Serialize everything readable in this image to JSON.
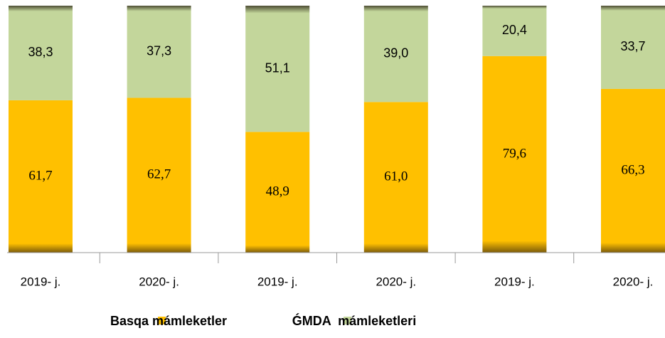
{
  "chart_data": {
    "type": "stacked_bar",
    "categories": [
      "2019- j.",
      "2020- j.",
      "2019- j.",
      "2020- j.",
      "2019- j.",
      "2020- j."
    ],
    "series": [
      {
        "name": "Basqa mámleketler",
        "color": "#FFC000",
        "values": [
          61.7,
          62.7,
          48.9,
          61.0,
          79.6,
          66.3
        ],
        "value_labels": [
          "61,7",
          "62,7",
          "48,9",
          "61,0",
          "79,6",
          "66,3"
        ]
      },
      {
        "name": "ǴMDA  mámleketleri",
        "color": "#C3D69B",
        "values": [
          38.3,
          37.3,
          51.1,
          39.0,
          20.4,
          33.7
        ],
        "value_labels": [
          "38,3",
          "37,3",
          "51,1",
          "39,0",
          "20,4",
          "33,7"
        ]
      }
    ],
    "ylim": [
      0,
      100
    ],
    "legend": "bottom"
  }
}
